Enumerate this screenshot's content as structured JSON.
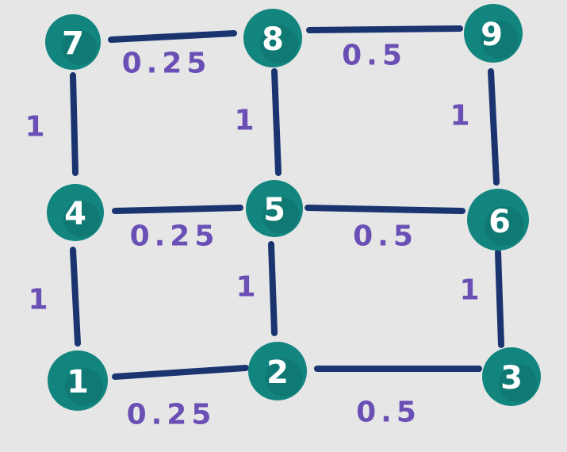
{
  "diagram": {
    "colors": {
      "background": "#e6e6e6",
      "edge": "#1a3470",
      "node": "#12857f",
      "node_text": "#ffffff",
      "weight_text": "#6a4fb5"
    },
    "nodes": [
      {
        "id": "n1",
        "label": "1"
      },
      {
        "id": "n2",
        "label": "2"
      },
      {
        "id": "n3",
        "label": "3"
      },
      {
        "id": "n4",
        "label": "4"
      },
      {
        "id": "n5",
        "label": "5"
      },
      {
        "id": "n6",
        "label": "6"
      },
      {
        "id": "n7",
        "label": "7"
      },
      {
        "id": "n8",
        "label": "8"
      },
      {
        "id": "n9",
        "label": "9"
      }
    ],
    "edges": [
      {
        "from": "7",
        "to": "8",
        "weight": "0.25"
      },
      {
        "from": "8",
        "to": "9",
        "weight": "0.5"
      },
      {
        "from": "4",
        "to": "5",
        "weight": "0.25"
      },
      {
        "from": "5",
        "to": "6",
        "weight": "0.5"
      },
      {
        "from": "1",
        "to": "2",
        "weight": "0.25"
      },
      {
        "from": "2",
        "to": "3",
        "weight": "0.5"
      },
      {
        "from": "7",
        "to": "4",
        "weight": "1"
      },
      {
        "from": "8",
        "to": "5",
        "weight": "1"
      },
      {
        "from": "9",
        "to": "6",
        "weight": "1"
      },
      {
        "from": "4",
        "to": "1",
        "weight": "1"
      },
      {
        "from": "5",
        "to": "2",
        "weight": "1"
      },
      {
        "from": "6",
        "to": "3",
        "weight": "1"
      }
    ]
  }
}
